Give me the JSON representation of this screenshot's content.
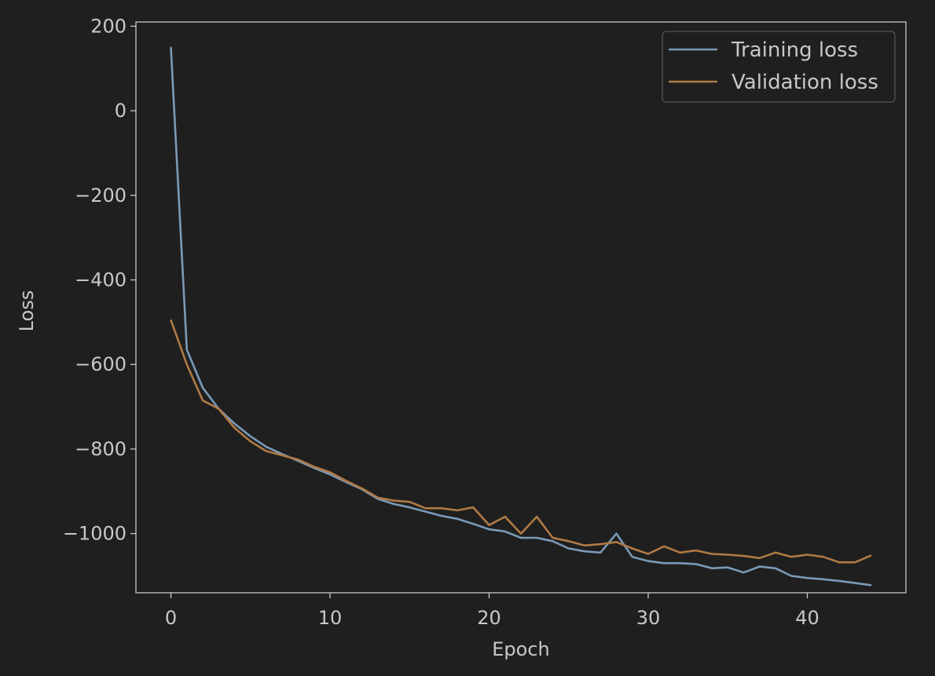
{
  "chart_data": {
    "type": "line",
    "title": "",
    "xlabel": "Epoch",
    "ylabel": "Loss",
    "xlim": [
      -2.2,
      46.2
    ],
    "ylim": [
      -1140,
      210
    ],
    "xticks": [
      0,
      10,
      20,
      30,
      40
    ],
    "yticks": [
      200,
      0,
      -200,
      -400,
      -600,
      -800,
      -1000
    ],
    "ytick_labels": [
      "200",
      "0",
      "−200",
      "−400",
      "−600",
      "−800",
      "−1000"
    ],
    "xtick_labels": [
      "0",
      "10",
      "20",
      "30",
      "40"
    ],
    "grid": false,
    "legend_position": "top-right",
    "x": [
      0,
      1,
      2,
      3,
      4,
      5,
      6,
      7,
      8,
      9,
      10,
      11,
      12,
      13,
      14,
      15,
      16,
      17,
      18,
      19,
      20,
      21,
      22,
      23,
      24,
      25,
      26,
      27,
      28,
      29,
      30,
      31,
      32,
      33,
      34,
      35,
      36,
      37,
      38,
      39,
      40,
      41,
      42,
      43,
      44
    ],
    "series": [
      {
        "name": "Training loss",
        "color": "#7b9ab8",
        "values": [
          150,
          -565,
          -655,
          -705,
          -740,
          -770,
          -795,
          -812,
          -828,
          -845,
          -860,
          -878,
          -895,
          -918,
          -930,
          -938,
          -948,
          -958,
          -965,
          -977,
          -990,
          -995,
          -1010,
          -1010,
          -1018,
          -1035,
          -1042,
          -1045,
          -1000,
          -1055,
          -1065,
          -1070,
          -1070,
          -1072,
          -1082,
          -1080,
          -1092,
          -1078,
          -1082,
          -1100,
          -1105,
          -1108,
          -1112,
          -1117,
          -1122
        ]
      },
      {
        "name": "Validation loss",
        "color": "#b07a45",
        "values": [
          -495,
          -600,
          -685,
          -705,
          -750,
          -782,
          -805,
          -815,
          -825,
          -842,
          -855,
          -875,
          -893,
          -915,
          -922,
          -925,
          -940,
          -940,
          -945,
          -938,
          -980,
          -960,
          -1000,
          -960,
          -1010,
          -1018,
          -1028,
          -1025,
          -1020,
          -1035,
          -1048,
          -1030,
          -1045,
          -1040,
          -1048,
          -1050,
          -1053,
          -1058,
          -1045,
          -1055,
          -1050,
          -1055,
          -1068,
          -1068,
          -1052
        ]
      }
    ]
  }
}
